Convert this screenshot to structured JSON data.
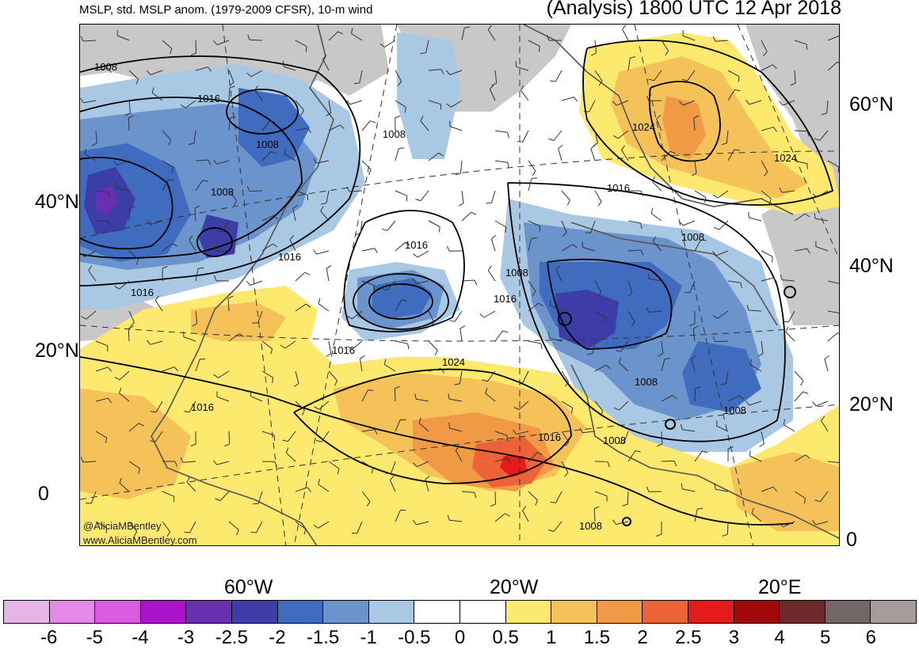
{
  "header": {
    "left_title": "MSLP, std. MSLP anom. (1979-2009 CFSR), 10-m wind",
    "right_title": "(Analysis) 1800 UTC 12 Apr 2018"
  },
  "credits": {
    "handle": "@AliciaMBentley",
    "website": "www.AliciaMBentley.com"
  },
  "lat_labels_left": [
    "40°N",
    "20°N",
    "0"
  ],
  "lat_labels_right": [
    "60°N",
    "40°N",
    "20°N",
    "0"
  ],
  "lon_labels": [
    "60°W",
    "20°W",
    "20°E"
  ],
  "isobar_labels": [
    "1008",
    "1016",
    "1008",
    "1008",
    "1016",
    "1016",
    "1008",
    "1016",
    "1016",
    "1008",
    "1016",
    "1024",
    "1016",
    "1024",
    "1016",
    "1008",
    "1008",
    "1008",
    "1008",
    "1016",
    "1008",
    "1024"
  ],
  "colorbar": {
    "colors": [
      "#e8b4e8",
      "#e48ae6",
      "#d95be0",
      "#ad13cc",
      "#6a2eb0",
      "#3d3da8",
      "#3f6cbf",
      "#6b94cc",
      "#a8c8e4",
      "#ffffff",
      "#ffffff",
      "#fde96e",
      "#f5c25a",
      "#f09a46",
      "#ec6338",
      "#e41b1b",
      "#a20a0a",
      "#6e2a2a",
      "#726766",
      "#a79c9b"
    ],
    "tick_labels": [
      "-6",
      "-5",
      "-4",
      "-3",
      "-2.5",
      "-2",
      "-1.5",
      "-1",
      "-0.5",
      "0",
      "0.5",
      "1",
      "1.5",
      "2",
      "2.5",
      "3",
      "4",
      "5",
      "6"
    ]
  },
  "colors": {
    "land_gray": "#c8c8c8",
    "coast": "#555555"
  }
}
